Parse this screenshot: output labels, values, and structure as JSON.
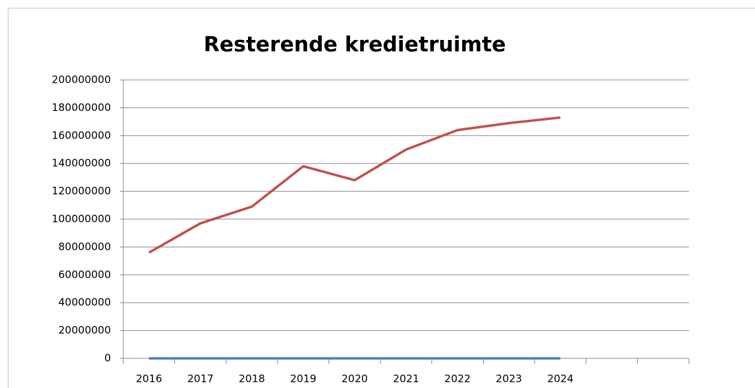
{
  "chart_data": {
    "type": "line",
    "title": "Resterende kredietruimte",
    "categories": [
      "2016",
      "2017",
      "2018",
      "2019",
      "2020",
      "2021",
      "2022",
      "2023",
      "2024",
      null,
      null
    ],
    "series": [
      {
        "color": "#4f81bd",
        "values": [
          0,
          0,
          0,
          0,
          0,
          0,
          0,
          0,
          0,
          null,
          null
        ]
      },
      {
        "color": "#c0504d",
        "values": [
          76000000,
          97000000,
          109000000,
          138000000,
          128000000,
          150000000,
          164000000,
          169000000,
          173000000,
          null,
          null
        ]
      }
    ],
    "ylim": [
      0,
      200000000
    ],
    "yticks": [
      0,
      20000000,
      40000000,
      60000000,
      80000000,
      100000000,
      120000000,
      140000000,
      160000000,
      180000000,
      200000000
    ],
    "grid": true
  }
}
